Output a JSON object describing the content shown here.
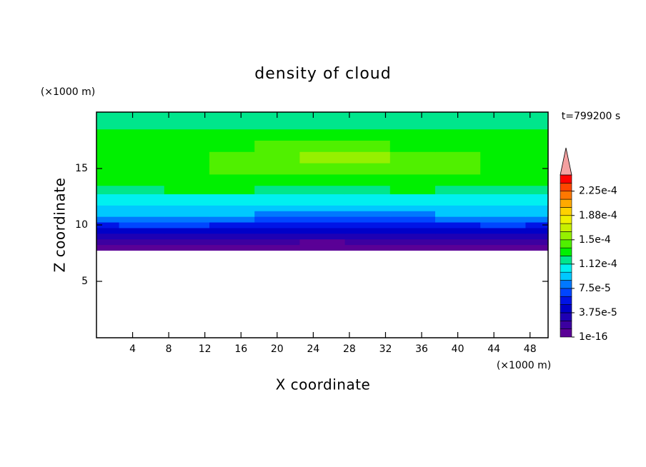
{
  "chart_data": {
    "type": "contour",
    "title": "density of cloud",
    "x_label": "X coordinate",
    "y_label": "Z coordinate",
    "x_unit": "(×1000 m)",
    "y_unit": "(×1000 m)",
    "annotation": "t=799200 s",
    "x": [
      0,
      5,
      10,
      15,
      20,
      25,
      30,
      35,
      40,
      45,
      50
    ],
    "z": [
      8,
      8.5,
      9,
      9.5,
      10,
      10.5,
      11,
      11.5,
      12,
      12.5,
      13,
      14,
      15,
      16,
      17,
      18,
      19,
      19.5
    ],
    "values": [
      [
        4e-06,
        6e-06,
        5e-06,
        4e-06,
        7e-06,
        8e-06,
        9e-06,
        6e-06,
        5e-06,
        4e-06,
        5e-06
      ],
      [
        1.6e-05,
        1.8e-05,
        1.7e-05,
        1.6e-05,
        1.4e-05,
        1.2e-05,
        1.3e-05,
        1.5e-05,
        1.7e-05,
        1.8e-05,
        1.6e-05
      ],
      [
        3e-05,
        3.1e-05,
        3.2e-05,
        3e-05,
        2.7e-05,
        2.5e-05,
        2.6e-05,
        2.8e-05,
        3e-05,
        3.1e-05,
        3e-05
      ],
      [
        4.6e-05,
        4.7e-05,
        4.8e-05,
        4.5e-05,
        4e-05,
        3.8e-05,
        4e-05,
        4.3e-05,
        4.6e-05,
        4.7e-05,
        4.6e-05
      ],
      [
        6.2e-05,
        6.3e-05,
        6.4e-05,
        6e-05,
        5.5e-05,
        5.2e-05,
        5.4e-05,
        5.8e-05,
        6.1e-05,
        6.3e-05,
        6.2e-05
      ],
      [
        7.7e-05,
        7.8e-05,
        7.8e-05,
        7.5e-05,
        7e-05,
        6.8e-05,
        7e-05,
        7.3e-05,
        7.6e-05,
        7.8e-05,
        7.7e-05
      ],
      [
        8.9e-05,
        9e-05,
        9e-05,
        8.8e-05,
        8.5e-05,
        8.3e-05,
        8.5e-05,
        8.7e-05,
        8.9e-05,
        9e-05,
        8.9e-05
      ],
      [
        9.6e-05,
        9.7e-05,
        9.7e-05,
        9.6e-05,
        9.4e-05,
        9.3e-05,
        9.4e-05,
        9.5e-05,
        9.6e-05,
        9.7e-05,
        9.6e-05
      ],
      [
        0.000103,
        0.000104,
        0.000104,
        0.000103,
        0.000102,
        0.000101,
        0.000102,
        0.000103,
        0.000103,
        0.000104,
        0.000103
      ],
      [
        0.000109,
        0.00011,
        0.00011,
        0.000109,
        0.000108,
        0.000108,
        0.000108,
        0.000109,
        0.000109,
        0.00011,
        0.000109
      ],
      [
        0.000122,
        0.000124,
        0.000126,
        0.000125,
        0.000124,
        0.000123,
        0.000124,
        0.000125,
        0.000124,
        0.000123,
        0.000122
      ],
      [
        0.00013,
        0.000132,
        0.000134,
        0.000135,
        0.000136,
        0.000137,
        0.000136,
        0.000135,
        0.000134,
        0.000132,
        0.00013
      ],
      [
        0.000133,
        0.000135,
        0.000137,
        0.000139,
        0.000142,
        0.000145,
        0.000144,
        0.000141,
        0.000138,
        0.000135,
        0.000133
      ],
      [
        0.000132,
        0.000134,
        0.000136,
        0.000139,
        0.000145,
        0.000152,
        0.000151,
        0.000143,
        0.000138,
        0.000134,
        0.000132
      ],
      [
        0.00013,
        0.000131,
        0.000133,
        0.000135,
        0.000138,
        0.000141,
        0.00014,
        0.000137,
        0.000134,
        0.000131,
        0.00013
      ],
      [
        0.000127,
        0.000128,
        0.000129,
        0.00013,
        0.000131,
        0.000132,
        0.000131,
        0.00013,
        0.000129,
        0.000128,
        0.000127
      ],
      [
        0.000119,
        0.00012,
        0.000121,
        0.000122,
        0.000123,
        0.000124,
        0.000123,
        0.000122,
        0.000121,
        0.00012,
        0.000119
      ],
      [
        0.000113,
        0.000114,
        0.000115,
        0.000116,
        0.000117,
        0.000118,
        0.000117,
        0.000116,
        0.000115,
        0.000114,
        0.000113
      ]
    ],
    "xlim": [
      0,
      50
    ],
    "ylim": [
      0,
      20
    ],
    "xticks": [
      4,
      8,
      12,
      16,
      20,
      24,
      28,
      32,
      36,
      40,
      44,
      48
    ],
    "yticks": [
      5,
      10,
      15
    ],
    "levels": [
      1e-16,
      1.25e-05,
      2.5e-05,
      3.75e-05,
      5e-05,
      6.25e-05,
      7.5e-05,
      8.75e-05,
      0.0001,
      0.0001125,
      0.000125,
      0.0001375,
      0.00015,
      0.0001625,
      0.000175,
      0.0001875,
      0.0002,
      0.0002125,
      0.000225,
      0.0002375,
      0.00025
    ],
    "colors": [
      "#5a0096",
      "#3c00a0",
      "#1e00b4",
      "#0000c8",
      "#0014e6",
      "#0046ff",
      "#0078ff",
      "#00c8ff",
      "#00f0f0",
      "#00e68c",
      "#00f000",
      "#50f000",
      "#96f000",
      "#c8f000",
      "#f0f000",
      "#ffd200",
      "#ffaa00",
      "#ff7800",
      "#ff4600",
      "#ff0000"
    ],
    "over_color": "#f4a0a0",
    "cticks": [
      1e-16,
      {
        "value": 3.75e-05,
        "label": "3.75e-5"
      },
      {
        "value": 7.5e-05,
        "label": "7.5e-5"
      },
      {
        "value": 0.0001125,
        "label": "1.12e-4"
      },
      {
        "value": 0.00015,
        "label": "1.5e-4"
      },
      {
        "value": 0.0001875,
        "label": "1.88e-4"
      },
      {
        "value": 0.000225,
        "label": "2.25e-4"
      }
    ]
  }
}
